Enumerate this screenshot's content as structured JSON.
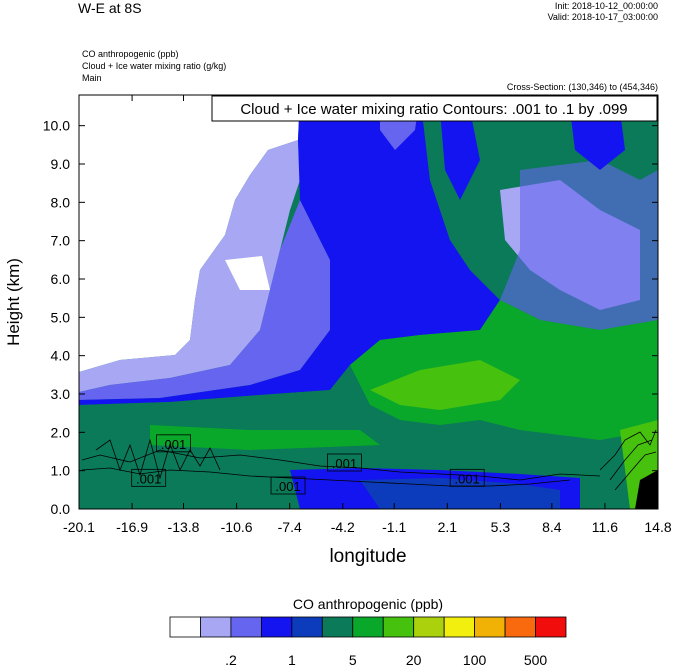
{
  "header": {
    "title": "W-E at 8S",
    "init": "Init: 2018-10-12_00:00:00",
    "valid": "Valid: 2018-10-17_03:00:00",
    "vars": [
      "CO anthropogenic   (ppb)",
      "Cloud + Ice water mixing ratio   (g/kg)",
      "Main"
    ],
    "cross_section": "Cross-Section: (130,346) to (454,346)"
  },
  "colors": {
    "levels": [
      "#ffffff",
      "#a7a7f4",
      "#6565ef",
      "#1414f0",
      "#0c3cbc",
      "#0a7a58",
      "#0aa82a",
      "#46c10e",
      "#aad10c",
      "#f2ee0e",
      "#f2b205",
      "#f86a0d",
      "#f20d0d"
    ]
  },
  "chart_data": {
    "type": "heatmap",
    "title": "Cloud + Ice water mixing ratio Contours: .001 to .1 by .099",
    "xlabel": "longitude",
    "ylabel": "Height (km)",
    "xlim": [
      -20.1,
      14.8
    ],
    "ylim": [
      0.0,
      10.8
    ],
    "x_ticks": [
      -20.1,
      -16.9,
      -13.8,
      -10.6,
      -7.4,
      -4.2,
      -1.1,
      2.1,
      5.3,
      8.4,
      11.6,
      14.8
    ],
    "x_tick_labels": [
      "-20.1",
      "-16.9",
      "-13.8",
      "-10.6",
      "-7.4",
      "-4.2",
      "-1.1",
      "2.1",
      "5.3",
      "8.4",
      "11.6",
      "14.8"
    ],
    "y_ticks": [
      0.0,
      1.0,
      2.0,
      3.0,
      4.0,
      5.0,
      6.0,
      7.0,
      8.0,
      9.0,
      10.0
    ],
    "y_tick_labels": [
      "0.0",
      "1.0",
      "2.0",
      "3.0",
      "4.0",
      "5.0",
      "6.0",
      "7.0",
      "8.0",
      "9.0",
      "10.0"
    ],
    "colorbar": {
      "title": "CO anthropogenic  (ppb)",
      "labels": [
        ".2",
        "1",
        "5",
        "20",
        "100",
        "500"
      ]
    },
    "contour_labels": [
      {
        "text": ".001",
        "x": -14.4,
        "y": 1.7
      },
      {
        "text": ".001",
        "x": -15.9,
        "y": 0.8
      },
      {
        "text": ".001",
        "x": -7.5,
        "y": 0.6
      },
      {
        "text": ".001",
        "x": -4.1,
        "y": 1.2
      },
      {
        "text": ".001",
        "x": 3.3,
        "y": 0.8
      }
    ]
  }
}
